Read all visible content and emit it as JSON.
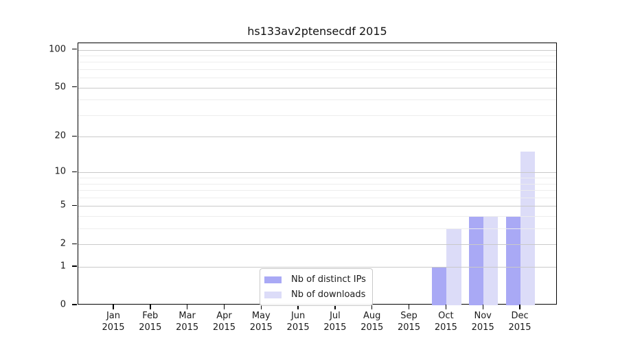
{
  "chart_data": {
    "type": "bar",
    "title": "hs133av2ptensecdf 2015",
    "categories": [
      "Jan 2015",
      "Feb 2015",
      "Mar 2015",
      "Apr 2015",
      "May 2015",
      "Jun 2015",
      "Jul 2015",
      "Aug 2015",
      "Sep 2015",
      "Oct 2015",
      "Nov 2015",
      "Dec 2015"
    ],
    "series": [
      {
        "name": "Nb of distinct IPs",
        "color": "#a9a9f5",
        "values": [
          0,
          0,
          0,
          0,
          0,
          0,
          0,
          0,
          0,
          1,
          4,
          4
        ]
      },
      {
        "name": "Nb of downloads",
        "color": "#dcdcf8",
        "values": [
          0,
          0,
          0,
          0,
          0,
          0,
          0,
          0,
          0,
          3,
          4,
          15
        ]
      }
    ],
    "yscale": "log1p",
    "ylim": [
      0,
      113
    ],
    "yticks": [
      "0",
      "1",
      "2",
      "5",
      "10",
      "20",
      "50",
      "100"
    ],
    "ytick_values": [
      0,
      1,
      2,
      5,
      10,
      20,
      50,
      100
    ],
    "minor_gridline_values": [
      3,
      4,
      6,
      7,
      8,
      9,
      30,
      40,
      60,
      70,
      80,
      90
    ],
    "grid": true,
    "grid_on_top_of_bars": true,
    "legend_position": "lower center",
    "colors": {
      "grid_major": "#c9c9c9",
      "grid_minor": "#ededed",
      "axis_frame": "#000000",
      "background": "#ffffff"
    }
  }
}
